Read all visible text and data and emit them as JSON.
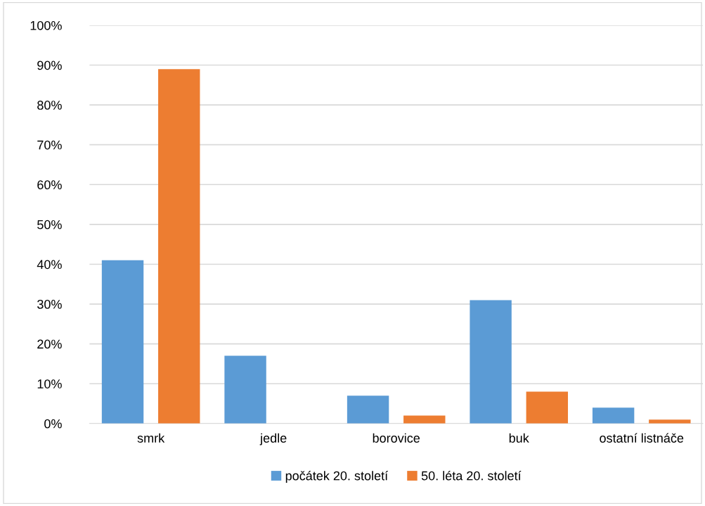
{
  "chart_data": {
    "type": "bar",
    "categories": [
      "smrk",
      "jedle",
      "borovice",
      "buk",
      "ostatní listnáče"
    ],
    "series": [
      {
        "name": "počátek 20. století",
        "color": "#5b9bd5",
        "values": [
          41,
          17,
          7,
          31,
          4
        ]
      },
      {
        "name": "50. léta 20. století",
        "color": "#ed7d31",
        "values": [
          89,
          0,
          2,
          8,
          1
        ]
      }
    ],
    "ylim": [
      0,
      100
    ],
    "yticks": [
      {
        "value": 0,
        "label": "0%"
      },
      {
        "value": 10,
        "label": "10%"
      },
      {
        "value": 20,
        "label": "20%"
      },
      {
        "value": 30,
        "label": "30%"
      },
      {
        "value": 40,
        "label": "40%"
      },
      {
        "value": 50,
        "label": "50%"
      },
      {
        "value": 60,
        "label": "60%"
      },
      {
        "value": 70,
        "label": "70%"
      },
      {
        "value": 80,
        "label": "80%"
      },
      {
        "value": 90,
        "label": "90%"
      },
      {
        "value": 100,
        "label": "100%"
      }
    ],
    "grid": "y",
    "legend": "bottom"
  }
}
